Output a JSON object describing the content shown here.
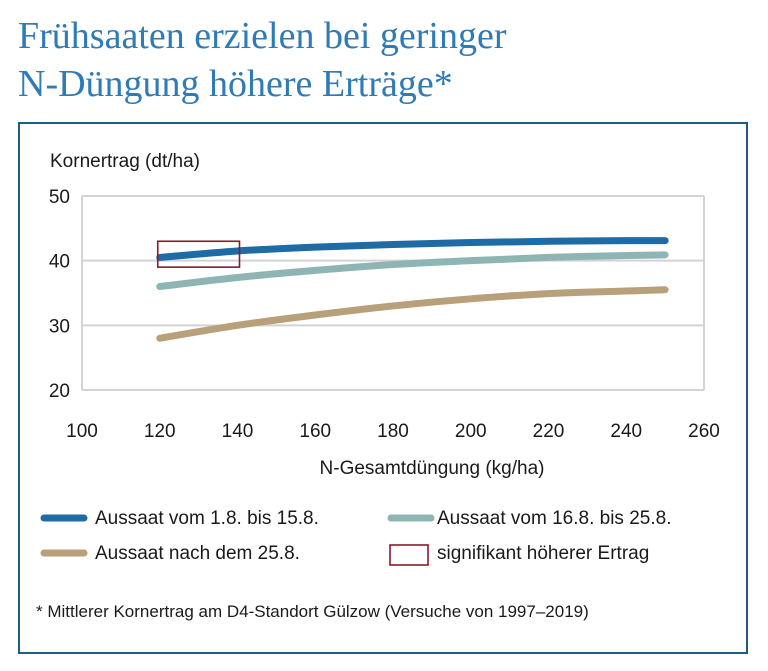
{
  "title": {
    "line1": "Frühsaaten erzielen bei geringer",
    "line2": "N-Düngung höhere Erträge*"
  },
  "footnote": "* Mittlerer Kornertrag am D4-Standort Gülzow (Versuche von 1997–2019)",
  "colors": {
    "title": "#2f7bb6",
    "frame": "#1d5e7f",
    "grid": "#d3d3d3",
    "highlight": "#8b1a2b"
  },
  "chart_data": {
    "type": "line",
    "ylabel": "Kornertrag (dt/ha)",
    "xlabel": "N-Gesamtdüngung (kg/ha)",
    "xlim": [
      100,
      260
    ],
    "ylim": [
      20,
      50
    ],
    "xticks": [
      "100",
      "120",
      "140",
      "160",
      "180",
      "200",
      "220",
      "240",
      "260"
    ],
    "yticks": [
      "20",
      "30",
      "40",
      "50"
    ],
    "grid": true,
    "legend_position": "bottom",
    "x": [
      120,
      140,
      160,
      180,
      200,
      220,
      240,
      250
    ],
    "series": [
      {
        "name": "Aussaat vom 1.8. bis 15.8.",
        "color": "#1e6ba6",
        "values": [
          40.5,
          41.5,
          42.1,
          42.5,
          42.8,
          43.0,
          43.1,
          43.1
        ]
      },
      {
        "name": "Aussaat vom 16.8. bis 25.8.",
        "color": "#8fb4b4",
        "values": [
          36.0,
          37.4,
          38.5,
          39.4,
          40.0,
          40.5,
          40.8,
          40.9
        ]
      },
      {
        "name": "Aussaat nach dem 25.8.",
        "color": "#b8a07a",
        "values": [
          28.0,
          30.0,
          31.6,
          33.0,
          34.1,
          34.9,
          35.3,
          35.5
        ]
      }
    ],
    "highlight": {
      "label": "signifikant höherer Ertrag",
      "x_range": [
        120,
        140
      ],
      "y_range": [
        39,
        43
      ]
    }
  }
}
